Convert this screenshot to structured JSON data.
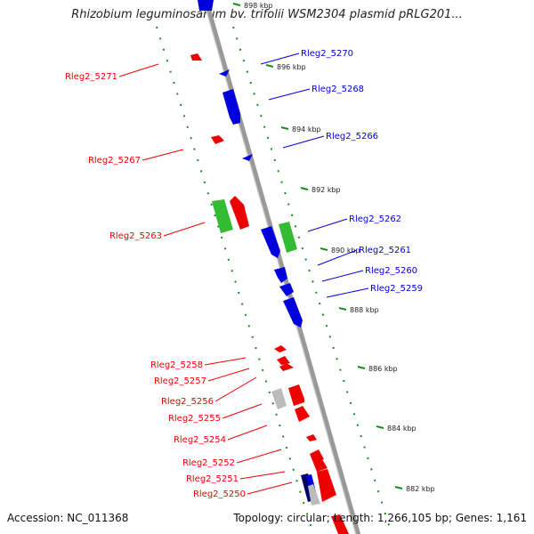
{
  "title": "Rhizobium leguminosarum bv. trifolii WSM2304 plasmid pRLG201...",
  "accession": "Accession: NC_011368",
  "summary": "Topology: circular; Length: 1,266,105 bp; Genes: 1,161",
  "colors": {
    "forward": "#ee0000",
    "reverse": "#0000dd",
    "rna": "#33bb33",
    "ruler": "#1e8a1e",
    "backbone": "#999999",
    "other": "#bbbbbb"
  },
  "ticks": [
    {
      "label": "898 kbp"
    },
    {
      "label": "896 kbp"
    },
    {
      "label": "894 kbp"
    },
    {
      "label": "892 kbp"
    },
    {
      "label": "890 kbp"
    },
    {
      "label": "888 kbp"
    },
    {
      "label": "886 kbp"
    },
    {
      "label": "884 kbp"
    },
    {
      "label": "882 kbp"
    }
  ],
  "genes_right": [
    {
      "label": "Rleg2_5270"
    },
    {
      "label": "Rleg2_5268"
    },
    {
      "label": "Rleg2_5266"
    },
    {
      "label": "Rleg2_5262"
    },
    {
      "label": "Rleg2_5261"
    },
    {
      "label": "Rleg2_5260"
    },
    {
      "label": "Rleg2_5259"
    }
  ],
  "genes_left": [
    {
      "label": "Rleg2_5271"
    },
    {
      "label": "Rleg2_5267"
    },
    {
      "label": "Rleg2_5263"
    },
    {
      "label": "Rleg2_5258"
    },
    {
      "label": "Rleg2_5257"
    },
    {
      "label": "Rleg2_5256"
    },
    {
      "label": "Rleg2_5255"
    },
    {
      "label": "Rleg2_5254"
    },
    {
      "label": "Rleg2_5252"
    },
    {
      "label": "Rleg2_5251"
    },
    {
      "label": "Rleg2_5250"
    }
  ]
}
